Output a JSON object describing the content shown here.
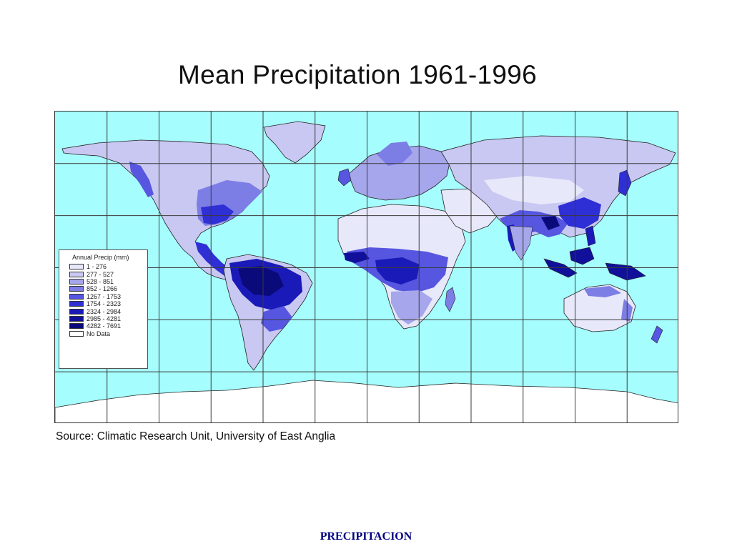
{
  "title": "Mean Precipitation 1961-1996",
  "source": "Source: Climatic Research Unit, University of East Anglia",
  "footer": "PRECIPITACION",
  "legend": {
    "title": "Annual Precip (mm)",
    "items": [
      {
        "label": "1 - 276",
        "color": "#e8e8fb"
      },
      {
        "label": "277 - 527",
        "color": "#c8c8f2"
      },
      {
        "label": "528 - 851",
        "color": "#a6a6ec"
      },
      {
        "label": "852 - 1266",
        "color": "#7d7de6"
      },
      {
        "label": "1267 - 1753",
        "color": "#5656e0"
      },
      {
        "label": "1754 - 2323",
        "color": "#2f2fd6"
      },
      {
        "label": "2324 - 2984",
        "color": "#1a1ab8"
      },
      {
        "label": "2985 - 4281",
        "color": "#10109a"
      },
      {
        "label": "4282 - 7691",
        "color": "#0a0a7a"
      },
      {
        "label": "No Data",
        "color": "#ffffff"
      }
    ]
  },
  "colors": {
    "ocean": "#a6fdfd",
    "grid": "#3a3a3a",
    "border": "#222222"
  }
}
